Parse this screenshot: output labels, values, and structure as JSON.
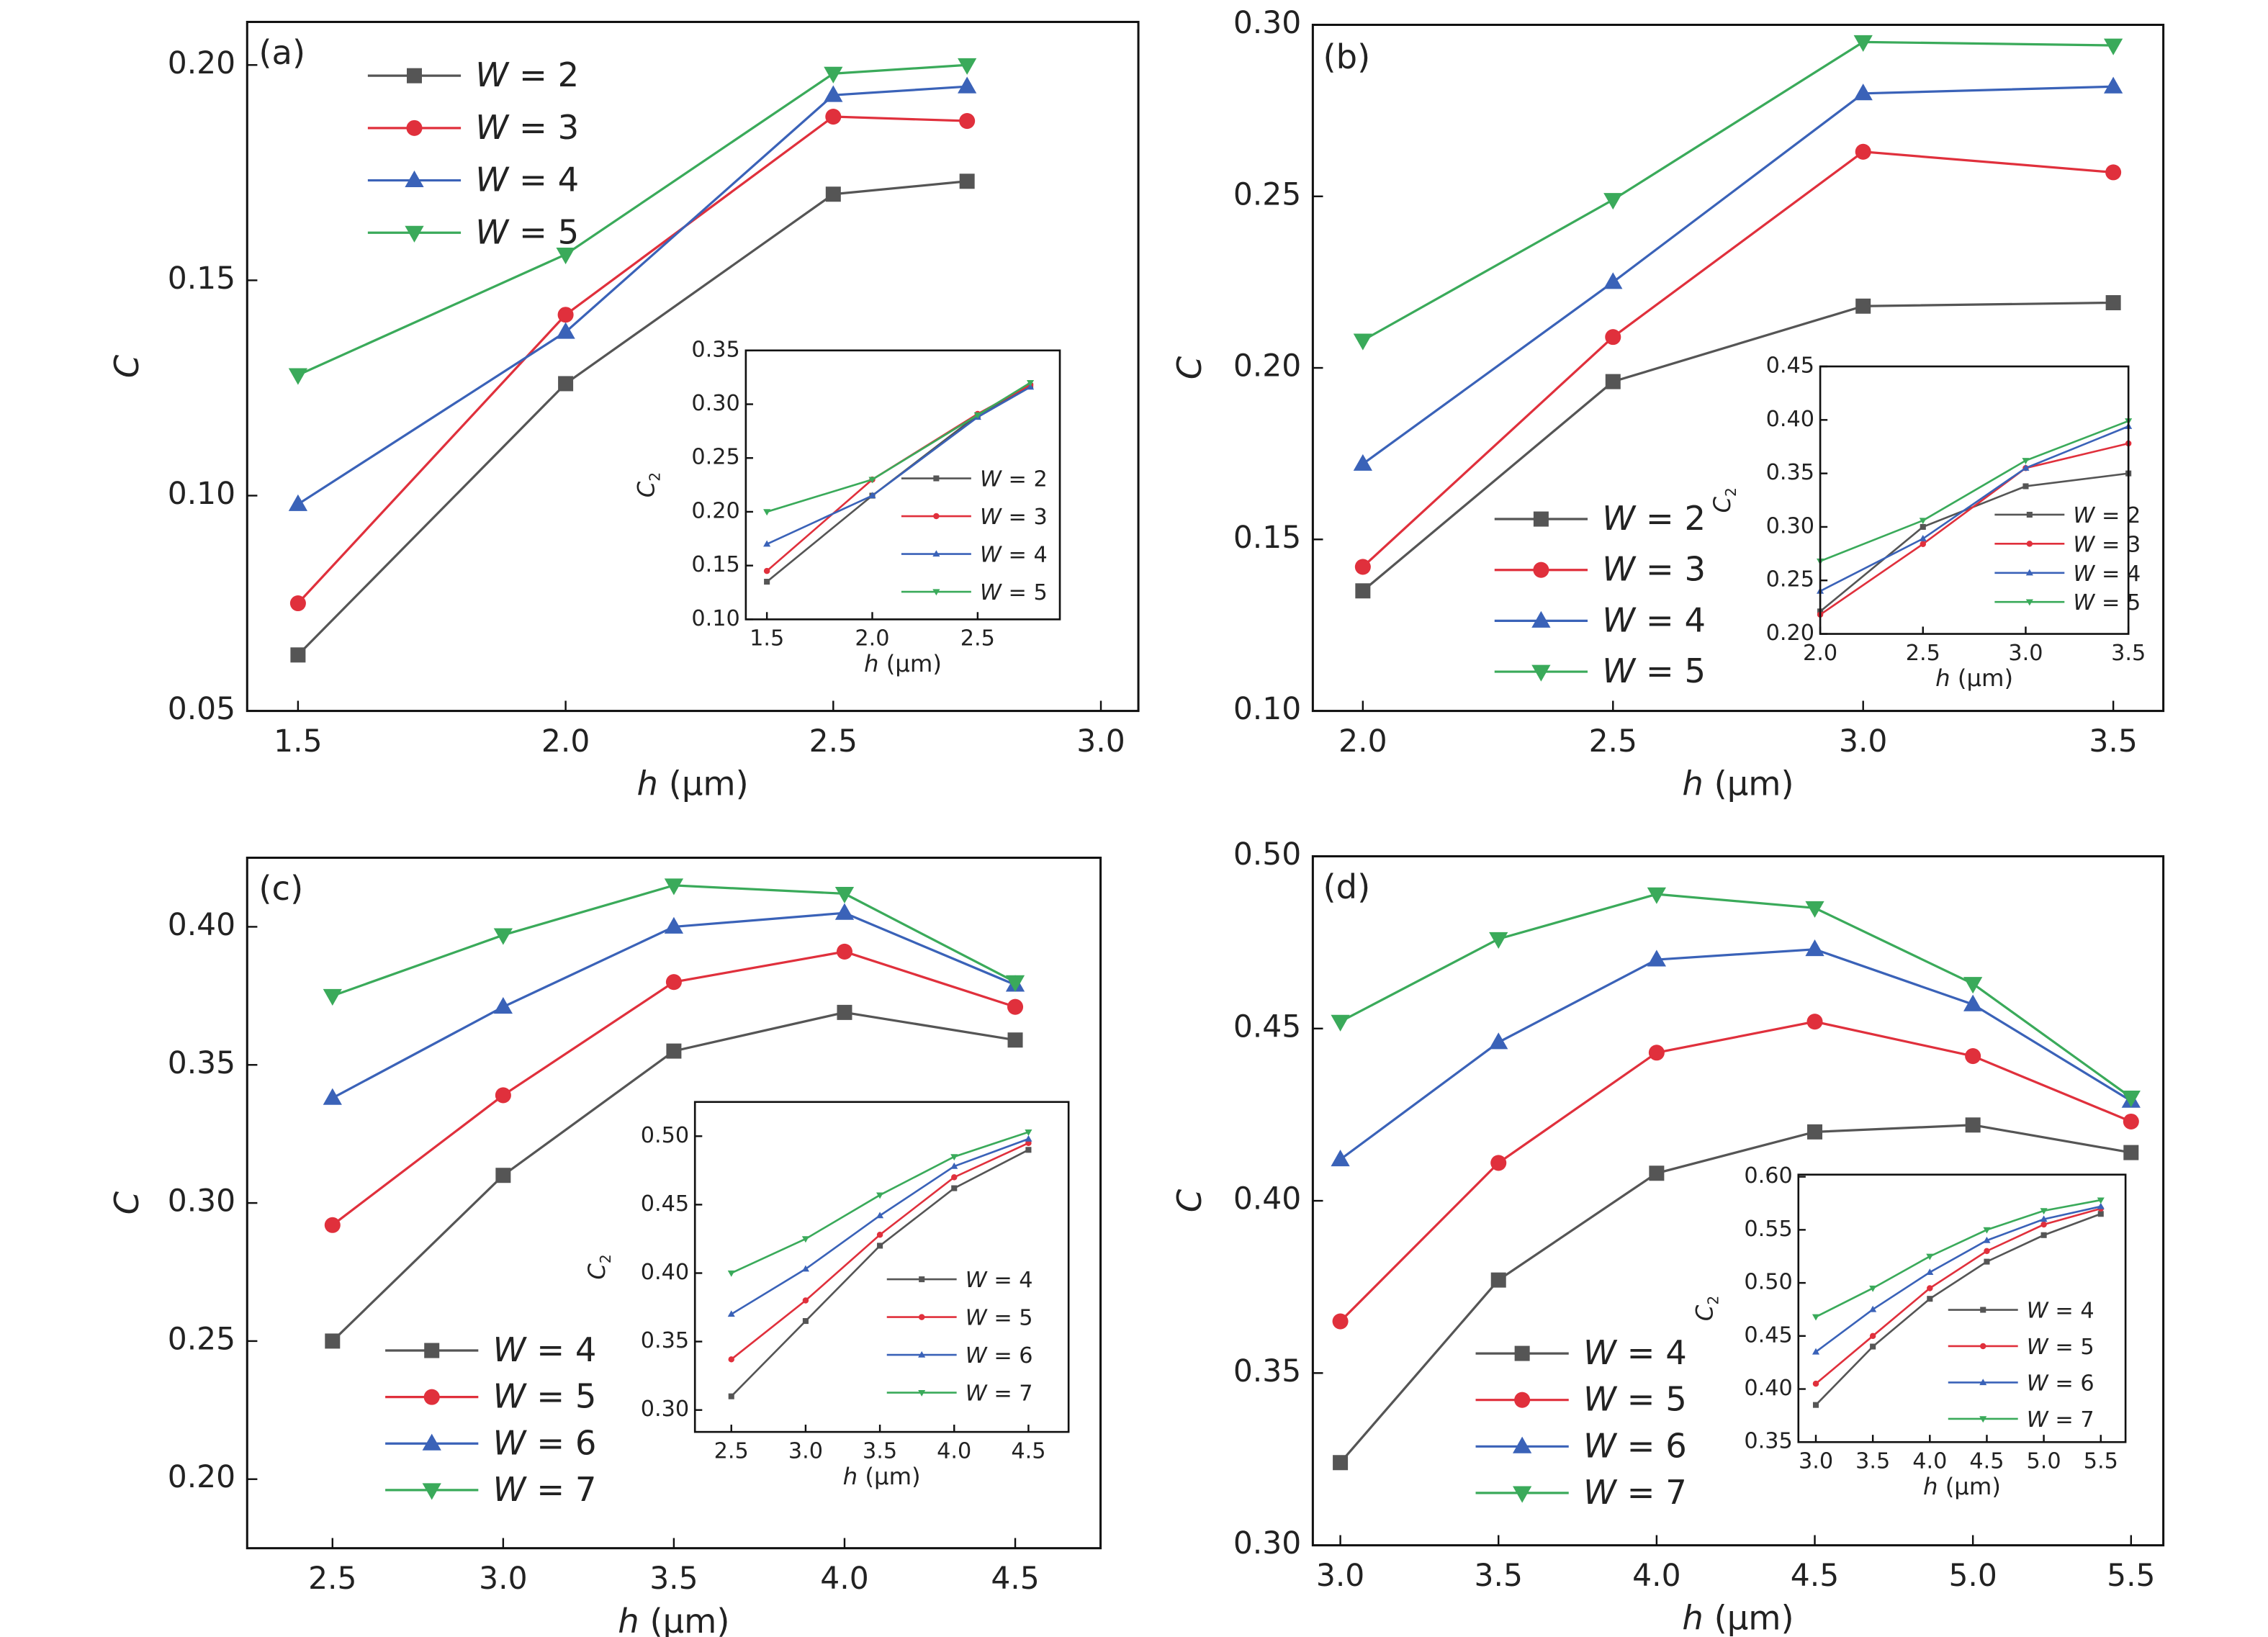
{
  "colors": {
    "W_a": "#555555",
    "W_b": "#e0303c",
    "W_c": "#3a62b8",
    "W_d": "#3aaa5a"
  },
  "markers": [
    "square",
    "circle",
    "triangle-up",
    "triangle-down"
  ],
  "chart_data": [
    {
      "type": "line",
      "panel_label": "(a)",
      "xlabel": "h (μm)",
      "ylabel": "C",
      "xlim": [
        1.405,
        3.07
      ],
      "ylim": [
        0.05,
        0.21
      ],
      "xticks": [
        1.5,
        2.0,
        2.5,
        3.0
      ],
      "yticks": [
        0.05,
        0.1,
        0.15,
        0.2
      ],
      "legend": "top-left",
      "x": [
        1.5,
        2.0,
        2.5,
        2.75
      ],
      "series": [
        {
          "name": "W = 2",
          "values": [
            0.063,
            0.126,
            0.17,
            0.173
          ]
        },
        {
          "name": "W = 3",
          "values": [
            0.075,
            0.142,
            0.188,
            0.187
          ]
        },
        {
          "name": "W = 4",
          "values": [
            0.098,
            0.138,
            0.193,
            0.195
          ]
        },
        {
          "name": "W = 5",
          "values": [
            0.128,
            0.156,
            0.198,
            0.2
          ]
        }
      ],
      "inset": {
        "xlabel": "h (μm)",
        "ylabel": "C2",
        "xlim": [
          1.4,
          2.89
        ],
        "ylim": [
          0.1,
          0.35
        ],
        "xticks": [
          1.5,
          2.0,
          2.5
        ],
        "yticks": [
          0.1,
          0.15,
          0.2,
          0.25,
          0.3,
          0.35
        ],
        "legend": "bottom-right",
        "x": [
          1.5,
          2.0,
          2.5,
          2.75
        ],
        "series": [
          {
            "name": "W = 2",
            "values": [
              0.135,
              0.215,
              0.29,
              0.317
            ]
          },
          {
            "name": "W = 3",
            "values": [
              0.145,
              0.23,
              0.291,
              0.318
            ]
          },
          {
            "name": "W = 4",
            "values": [
              0.17,
              0.215,
              0.288,
              0.316
            ]
          },
          {
            "name": "W = 5",
            "values": [
              0.2,
              0.23,
              0.29,
              0.32
            ]
          }
        ]
      }
    },
    {
      "type": "line",
      "panel_label": "(b)",
      "xlabel": "h (μm)",
      "ylabel": "C",
      "xlim": [
        1.9,
        3.6
      ],
      "ylim": [
        0.1,
        0.3
      ],
      "xticks": [
        2.0,
        2.5,
        3.0,
        3.5
      ],
      "yticks": [
        0.1,
        0.15,
        0.2,
        0.25,
        0.3
      ],
      "legend": "bottom-left",
      "x": [
        2.0,
        2.5,
        3.0,
        3.5
      ],
      "series": [
        {
          "name": "W = 2",
          "values": [
            0.135,
            0.196,
            0.218,
            0.219
          ]
        },
        {
          "name": "W = 3",
          "values": [
            0.142,
            0.209,
            0.263,
            0.257
          ]
        },
        {
          "name": "W = 4",
          "values": [
            0.172,
            0.225,
            0.28,
            0.282
          ]
        },
        {
          "name": "W = 5",
          "values": [
            0.208,
            0.249,
            0.295,
            0.294
          ]
        }
      ],
      "inset": {
        "xlabel": "h (μm)",
        "ylabel": "C2",
        "xlim": [
          2.0,
          3.5
        ],
        "ylim": [
          0.2,
          0.45
        ],
        "xticks": [
          2.0,
          2.5,
          3.0,
          3.5
        ],
        "yticks": [
          0.2,
          0.25,
          0.3,
          0.35,
          0.4,
          0.45
        ],
        "legend": "bottom-right",
        "x": [
          2.0,
          2.5,
          3.0,
          3.5
        ],
        "series": [
          {
            "name": "W = 2",
            "values": [
              0.221,
              0.3,
              0.338,
              0.35
            ]
          },
          {
            "name": "W = 3",
            "values": [
              0.218,
              0.284,
              0.355,
              0.378
            ]
          },
          {
            "name": "W = 4",
            "values": [
              0.24,
              0.289,
              0.355,
              0.394
            ]
          },
          {
            "name": "W = 5",
            "values": [
              0.268,
              0.306,
              0.362,
              0.399
            ]
          }
        ]
      }
    },
    {
      "type": "line",
      "panel_label": "(c)",
      "xlabel": "h (μm)",
      "ylabel": "C",
      "xlim": [
        2.25,
        4.75
      ],
      "ylim": [
        0.175,
        0.425
      ],
      "xticks": [
        2.5,
        3.0,
        3.5,
        4.0,
        4.5
      ],
      "yticks": [
        0.2,
        0.25,
        0.3,
        0.35,
        0.4
      ],
      "legend": "bottom-left",
      "x": [
        2.5,
        3.0,
        3.5,
        4.0,
        4.5
      ],
      "series": [
        {
          "name": "W = 4",
          "values": [
            0.25,
            0.31,
            0.355,
            0.369,
            0.359
          ]
        },
        {
          "name": "W = 5",
          "values": [
            0.292,
            0.339,
            0.38,
            0.391,
            0.371
          ]
        },
        {
          "name": "W = 6",
          "values": [
            0.338,
            0.371,
            0.4,
            0.405,
            0.379
          ]
        },
        {
          "name": "W = 7",
          "values": [
            0.375,
            0.397,
            0.415,
            0.412,
            0.38
          ]
        }
      ],
      "inset": {
        "xlabel": "h (μm)",
        "ylabel": "C2",
        "xlim": [
          2.255,
          4.77
        ],
        "ylim": [
          0.284,
          0.525
        ],
        "xticks": [
          2.5,
          3.0,
          3.5,
          4.0,
          4.5
        ],
        "yticks": [
          0.3,
          0.35,
          0.4,
          0.45,
          0.5
        ],
        "legend": "bottom-right",
        "x": [
          2.5,
          3.0,
          3.5,
          4.0,
          4.5
        ],
        "series": [
          {
            "name": "W = 4",
            "values": [
              0.31,
              0.365,
              0.42,
              0.462,
              0.49
            ]
          },
          {
            "name": "W = 5",
            "values": [
              0.337,
              0.38,
              0.428,
              0.47,
              0.495
            ]
          },
          {
            "name": "W = 6",
            "values": [
              0.37,
              0.403,
              0.442,
              0.478,
              0.498
            ]
          },
          {
            "name": "W = 7",
            "values": [
              0.4,
              0.425,
              0.457,
              0.485,
              0.503
            ]
          }
        ]
      }
    },
    {
      "type": "line",
      "panel_label": "(d)",
      "xlabel": "h (μm)",
      "ylabel": "C",
      "xlim": [
        2.913,
        5.602
      ],
      "ylim": [
        0.3,
        0.5
      ],
      "xticks": [
        3.0,
        3.5,
        4.0,
        4.5,
        5.0,
        5.5
      ],
      "yticks": [
        0.3,
        0.35,
        0.4,
        0.45,
        0.5
      ],
      "legend": "bottom-left",
      "x": [
        3.0,
        3.5,
        4.0,
        4.5,
        5.0,
        5.5
      ],
      "series": [
        {
          "name": "W = 4",
          "values": [
            0.324,
            0.377,
            0.408,
            0.42,
            0.422,
            0.414
          ]
        },
        {
          "name": "W = 5",
          "values": [
            0.365,
            0.411,
            0.443,
            0.452,
            0.442,
            0.423
          ]
        },
        {
          "name": "W = 6",
          "values": [
            0.412,
            0.446,
            0.47,
            0.473,
            0.457,
            0.429
          ]
        },
        {
          "name": "W = 7",
          "values": [
            0.452,
            0.476,
            0.489,
            0.485,
            0.463,
            0.43
          ]
        }
      ],
      "inset": {
        "xlabel": "h (μm)",
        "ylabel": "C2",
        "xlim": [
          2.847,
          5.717
        ],
        "ylim": [
          0.35,
          0.602
        ],
        "xticks": [
          3.0,
          3.5,
          4.0,
          4.5,
          5.0,
          5.5
        ],
        "yticks": [
          0.35,
          0.4,
          0.45,
          0.5,
          0.55,
          0.6
        ],
        "legend": "bottom-right",
        "x": [
          3.0,
          3.5,
          4.0,
          4.5,
          5.0,
          5.5
        ],
        "series": [
          {
            "name": "W = 4",
            "values": [
              0.385,
              0.44,
              0.485,
              0.52,
              0.545,
              0.565
            ]
          },
          {
            "name": "W = 5",
            "values": [
              0.405,
              0.45,
              0.495,
              0.53,
              0.555,
              0.57
            ]
          },
          {
            "name": "W = 6",
            "values": [
              0.435,
              0.475,
              0.51,
              0.54,
              0.56,
              0.572
            ]
          },
          {
            "name": "W = 7",
            "values": [
              0.468,
              0.495,
              0.525,
              0.55,
              0.568,
              0.578
            ]
          }
        ]
      }
    }
  ]
}
